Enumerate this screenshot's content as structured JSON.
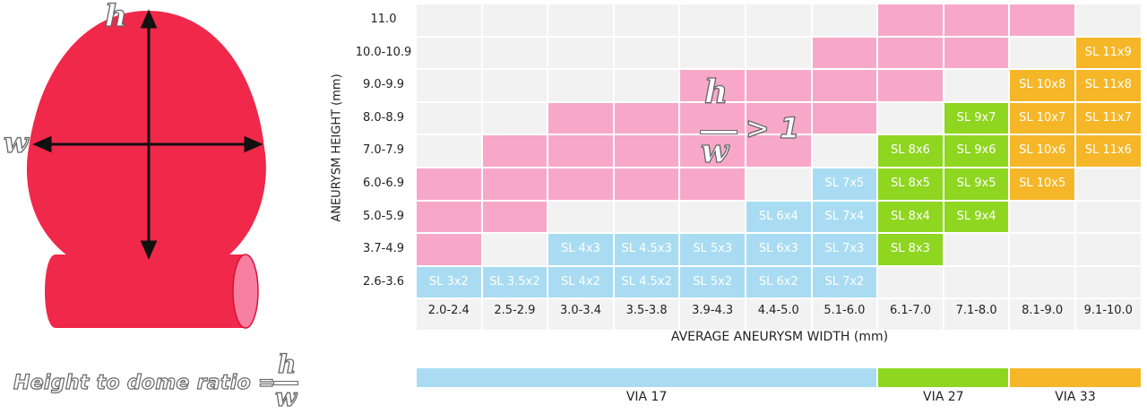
{
  "diagram": {
    "height_letter": "h",
    "width_letter": "w",
    "ratio_label": "Height to dome ratio =",
    "ratio_numerator": "h",
    "ratio_denominator": "w",
    "colors": {
      "aneurysm": "#f0284a",
      "vessel_end": "#f77fa0"
    }
  },
  "chart_annotation": {
    "numerator": "h",
    "denominator": "w",
    "comparison": "> 1"
  },
  "chart_data": {
    "type": "table",
    "xlabel": "AVERAGE ANEURYSM WIDTH (mm)",
    "ylabel": "ANEURYSM HEIGHT (mm)",
    "columns": [
      "2.0-2.4",
      "2.5-2.9",
      "3.0-3.4",
      "3.5-3.8",
      "3.9-4.3",
      "4.4-5.0",
      "5.1-6.0",
      "6.1-7.0",
      "7.1-8.0",
      "8.1-9.0",
      "9.1-10.0"
    ],
    "rows": [
      "11.0",
      "10.0-10.9",
      "9.0-9.9",
      "8.0-8.9",
      "7.0-7.9",
      "6.0-6.9",
      "5.0-5.9",
      "3.7-4.9",
      "2.6-3.6"
    ],
    "colors": {
      "empty": "#f2f2f2",
      "ratio_gt_1": "#f7a8c8",
      "via17": "#a9dcf2",
      "via27": "#8fd620",
      "via33": "#f5b728"
    },
    "cells": [
      {
        "row": 0,
        "col": 7,
        "category": "ratio_gt_1",
        "label": ""
      },
      {
        "row": 0,
        "col": 8,
        "category": "ratio_gt_1",
        "label": ""
      },
      {
        "row": 0,
        "col": 9,
        "category": "ratio_gt_1",
        "label": ""
      },
      {
        "row": 1,
        "col": 6,
        "category": "ratio_gt_1",
        "label": ""
      },
      {
        "row": 1,
        "col": 7,
        "category": "ratio_gt_1",
        "label": ""
      },
      {
        "row": 1,
        "col": 8,
        "category": "ratio_gt_1",
        "label": ""
      },
      {
        "row": 1,
        "col": 10,
        "category": "via33",
        "label": "SL 11x9"
      },
      {
        "row": 2,
        "col": 4,
        "category": "ratio_gt_1",
        "label": ""
      },
      {
        "row": 2,
        "col": 5,
        "category": "ratio_gt_1",
        "label": ""
      },
      {
        "row": 2,
        "col": 6,
        "category": "ratio_gt_1",
        "label": ""
      },
      {
        "row": 2,
        "col": 7,
        "category": "ratio_gt_1",
        "label": ""
      },
      {
        "row": 2,
        "col": 9,
        "category": "via33",
        "label": "SL 10x8"
      },
      {
        "row": 2,
        "col": 10,
        "category": "via33",
        "label": "SL 11x8"
      },
      {
        "row": 3,
        "col": 2,
        "category": "ratio_gt_1",
        "label": ""
      },
      {
        "row": 3,
        "col": 3,
        "category": "ratio_gt_1",
        "label": ""
      },
      {
        "row": 3,
        "col": 4,
        "category": "ratio_gt_1",
        "label": ""
      },
      {
        "row": 3,
        "col": 5,
        "category": "ratio_gt_1",
        "label": ""
      },
      {
        "row": 3,
        "col": 6,
        "category": "ratio_gt_1",
        "label": ""
      },
      {
        "row": 3,
        "col": 8,
        "category": "via27",
        "label": "SL 9x7"
      },
      {
        "row": 3,
        "col": 9,
        "category": "via33",
        "label": "SL 10x7"
      },
      {
        "row": 3,
        "col": 10,
        "category": "via33",
        "label": "SL 11x7"
      },
      {
        "row": 4,
        "col": 1,
        "category": "ratio_gt_1",
        "label": ""
      },
      {
        "row": 4,
        "col": 2,
        "category": "ratio_gt_1",
        "label": ""
      },
      {
        "row": 4,
        "col": 3,
        "category": "ratio_gt_1",
        "label": ""
      },
      {
        "row": 4,
        "col": 4,
        "category": "ratio_gt_1",
        "label": ""
      },
      {
        "row": 4,
        "col": 5,
        "category": "ratio_gt_1",
        "label": ""
      },
      {
        "row": 4,
        "col": 7,
        "category": "via27",
        "label": "SL 8x6"
      },
      {
        "row": 4,
        "col": 8,
        "category": "via27",
        "label": "SL 9x6"
      },
      {
        "row": 4,
        "col": 9,
        "category": "via33",
        "label": "SL 10x6"
      },
      {
        "row": 4,
        "col": 10,
        "category": "via33",
        "label": "SL 11x6"
      },
      {
        "row": 5,
        "col": 0,
        "category": "ratio_gt_1",
        "label": ""
      },
      {
        "row": 5,
        "col": 1,
        "category": "ratio_gt_1",
        "label": ""
      },
      {
        "row": 5,
        "col": 2,
        "category": "ratio_gt_1",
        "label": ""
      },
      {
        "row": 5,
        "col": 3,
        "category": "ratio_gt_1",
        "label": ""
      },
      {
        "row": 5,
        "col": 4,
        "category": "ratio_gt_1",
        "label": ""
      },
      {
        "row": 5,
        "col": 6,
        "category": "via17",
        "label": "SL 7x5"
      },
      {
        "row": 5,
        "col": 7,
        "category": "via27",
        "label": "SL 8x5"
      },
      {
        "row": 5,
        "col": 8,
        "category": "via27",
        "label": "SL 9x5"
      },
      {
        "row": 5,
        "col": 9,
        "category": "via33",
        "label": "SL 10x5"
      },
      {
        "row": 6,
        "col": 0,
        "category": "ratio_gt_1",
        "label": ""
      },
      {
        "row": 6,
        "col": 1,
        "category": "ratio_gt_1",
        "label": ""
      },
      {
        "row": 6,
        "col": 5,
        "category": "via17",
        "label": "SL 6x4"
      },
      {
        "row": 6,
        "col": 6,
        "category": "via17",
        "label": "SL 7x4"
      },
      {
        "row": 6,
        "col": 7,
        "category": "via27",
        "label": "SL 8x4"
      },
      {
        "row": 6,
        "col": 8,
        "category": "via27",
        "label": "SL 9x4"
      },
      {
        "row": 7,
        "col": 0,
        "category": "ratio_gt_1",
        "label": ""
      },
      {
        "row": 7,
        "col": 2,
        "category": "via17",
        "label": "SL 4x3"
      },
      {
        "row": 7,
        "col": 3,
        "category": "via17",
        "label": "SL 4.5x3"
      },
      {
        "row": 7,
        "col": 4,
        "category": "via17",
        "label": "SL 5x3"
      },
      {
        "row": 7,
        "col": 5,
        "category": "via17",
        "label": "SL 6x3"
      },
      {
        "row": 7,
        "col": 6,
        "category": "via17",
        "label": "SL 7x3"
      },
      {
        "row": 7,
        "col": 7,
        "category": "via27",
        "label": "SL 8x3"
      },
      {
        "row": 8,
        "col": 0,
        "category": "via17",
        "label": "SL 3x2"
      },
      {
        "row": 8,
        "col": 1,
        "category": "via17",
        "label": "SL 3.5x2"
      },
      {
        "row": 8,
        "col": 2,
        "category": "via17",
        "label": "SL 4x2"
      },
      {
        "row": 8,
        "col": 3,
        "category": "via17",
        "label": "SL 4.5x2"
      },
      {
        "row": 8,
        "col": 4,
        "category": "via17",
        "label": "SL 5x2"
      },
      {
        "row": 8,
        "col": 5,
        "category": "via17",
        "label": "SL 6x2"
      },
      {
        "row": 8,
        "col": 6,
        "category": "via17",
        "label": "SL 7x2"
      }
    ],
    "legend": [
      {
        "name": "VIA 17",
        "from_col": 0,
        "to_col": 6,
        "category": "via17"
      },
      {
        "name": "VIA 27",
        "from_col": 7,
        "to_col": 8,
        "category": "via27"
      },
      {
        "name": "VIA 33",
        "from_col": 9,
        "to_col": 10,
        "category": "via33"
      }
    ]
  }
}
